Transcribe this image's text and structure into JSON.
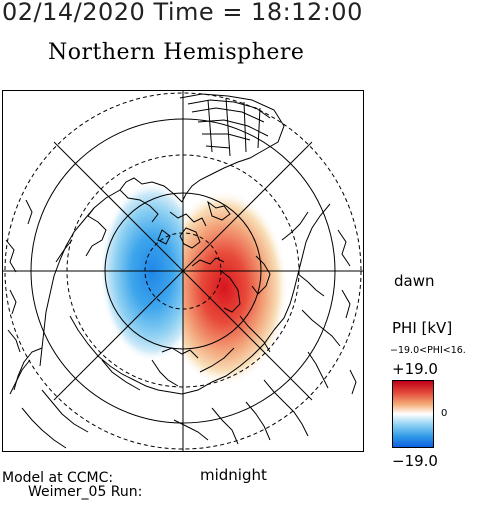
{
  "header": {
    "datetime": "02/14/2020 Time = 18:12:00",
    "hemisphere": "Northern Hemisphere"
  },
  "map": {
    "projection": "north-polar-stereographic",
    "orientation": {
      "right": "dawn",
      "bottom": "midnight"
    },
    "overlays": [
      "coastlines-icon",
      "latitude-circles",
      "local-time-grid"
    ],
    "pattern": {
      "dusk_cell": "negative",
      "dawn_cell": "positive"
    },
    "colors": {
      "positive": "#e02a2a",
      "negative": "#1a7ae6",
      "coast": "#000000"
    }
  },
  "labels": {
    "dawn": "dawn",
    "midnight": "midnight"
  },
  "legend": {
    "title": "PHI [kV]",
    "range_text": "−19.0<PHI<16.",
    "max": "+19.0",
    "zero": "0",
    "min": "−19.0"
  },
  "footer": {
    "line1": "Model at CCMC:",
    "line2": "Weimer_05 Run:"
  }
}
